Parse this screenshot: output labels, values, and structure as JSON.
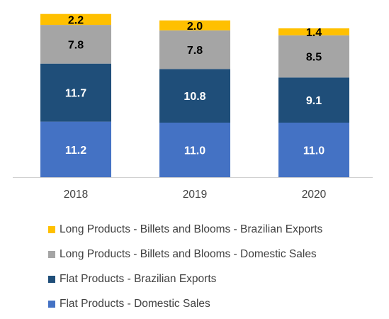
{
  "chart_data": {
    "type": "bar",
    "stacked": true,
    "categories": [
      "2018",
      "2019",
      "2020"
    ],
    "series": [
      {
        "name": "Flat Products - Domestic Sales",
        "color": "#4472C4",
        "label_color": "#ffffff",
        "values": [
          11.2,
          11.0,
          11.0
        ]
      },
      {
        "name": "Flat Products - Brazilian Exports",
        "color": "#1F4E79",
        "label_color": "#ffffff",
        "values": [
          11.7,
          10.8,
          9.1
        ]
      },
      {
        "name": "Long Products - Billets and Blooms - Domestic Sales",
        "color": "#A5A5A5",
        "label_color": "#000000",
        "values": [
          7.8,
          7.8,
          8.5
        ]
      },
      {
        "name": "Long Products - Billets and Blooms - Brazilian Exports",
        "color": "#FFC000",
        "label_color": "#000000",
        "values": [
          2.2,
          2.0,
          1.4
        ]
      }
    ],
    "data_labels": true,
    "ylim": [
      0,
      33
    ],
    "y_axis_visible": false,
    "grid": false,
    "legend_position": "bottom",
    "legend_order": [
      3,
      2,
      1,
      0
    ]
  }
}
